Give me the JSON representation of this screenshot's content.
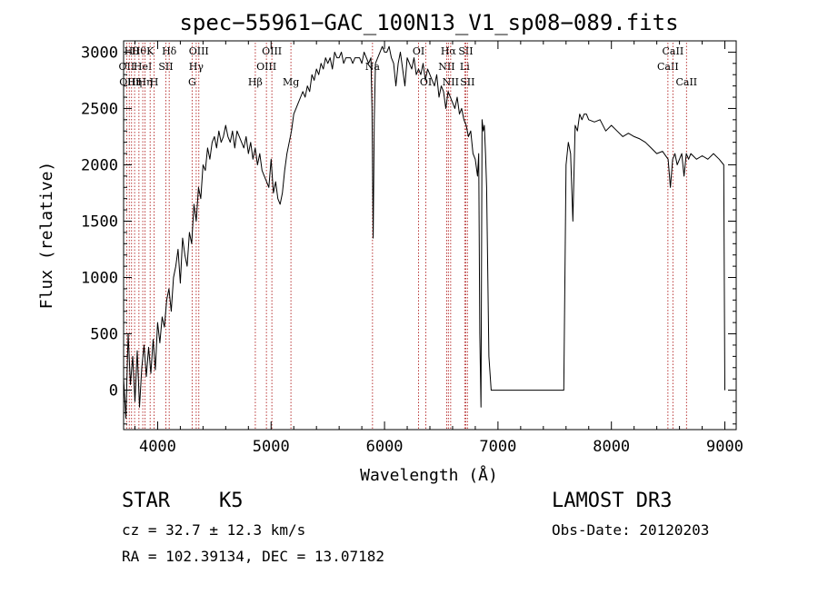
{
  "chart_data": {
    "type": "line",
    "title": "spec−55961−GAC_100N13_V1_sp08−089.fits",
    "xlabel": "Wavelength (Å)",
    "ylabel": "Flux (relative)",
    "xlim": [
      3700,
      9100
    ],
    "ylim": [
      -350,
      3100
    ],
    "xticks": [
      4000,
      5000,
      6000,
      7000,
      8000,
      9000
    ],
    "yticks": [
      0,
      500,
      1000,
      1500,
      2000,
      2500,
      3000
    ],
    "xtick_labels": [
      "4000",
      "5000",
      "6000",
      "7000",
      "8000",
      "9000"
    ],
    "ytick_labels": [
      "0",
      "500",
      "1000",
      "1500",
      "2000",
      "2500",
      "3000"
    ],
    "series": [
      {
        "name": "flux",
        "x": [
          3700,
          3720,
          3740,
          3760,
          3780,
          3800,
          3820,
          3840,
          3860,
          3880,
          3900,
          3920,
          3940,
          3960,
          3980,
          4000,
          4020,
          4040,
          4060,
          4080,
          4100,
          4120,
          4140,
          4160,
          4180,
          4200,
          4220,
          4240,
          4260,
          4280,
          4300,
          4320,
          4340,
          4360,
          4380,
          4400,
          4420,
          4440,
          4460,
          4480,
          4500,
          4520,
          4540,
          4560,
          4580,
          4600,
          4620,
          4640,
          4660,
          4680,
          4700,
          4720,
          4740,
          4760,
          4780,
          4800,
          4820,
          4840,
          4860,
          4880,
          4900,
          4920,
          4940,
          4960,
          4980,
          5000,
          5020,
          5040,
          5060,
          5080,
          5100,
          5120,
          5140,
          5160,
          5180,
          5200,
          5220,
          5240,
          5260,
          5280,
          5300,
          5320,
          5340,
          5360,
          5380,
          5400,
          5420,
          5440,
          5460,
          5480,
          5500,
          5520,
          5540,
          5560,
          5580,
          5600,
          5620,
          5640,
          5660,
          5680,
          5700,
          5720,
          5740,
          5760,
          5780,
          5800,
          5820,
          5840,
          5860,
          5880,
          5890,
          5900,
          5910,
          5920,
          5940,
          5960,
          5980,
          6000,
          6020,
          6040,
          6060,
          6080,
          6100,
          6120,
          6140,
          6160,
          6180,
          6200,
          6220,
          6240,
          6260,
          6280,
          6300,
          6320,
          6340,
          6360,
          6380,
          6400,
          6420,
          6440,
          6460,
          6480,
          6500,
          6520,
          6540,
          6560,
          6580,
          6600,
          6620,
          6640,
          6660,
          6680,
          6700,
          6720,
          6740,
          6760,
          6780,
          6800,
          6820,
          6830,
          6840,
          6850,
          6860,
          6870,
          6880,
          6890,
          6900,
          6920,
          6940,
          6960,
          7000,
          7100,
          7200,
          7300,
          7400,
          7500,
          7560,
          7580,
          7600,
          7620,
          7640,
          7660,
          7680,
          7700,
          7720,
          7740,
          7760,
          7780,
          7800,
          7850,
          7900,
          7950,
          8000,
          8050,
          8100,
          8150,
          8200,
          8250,
          8300,
          8350,
          8400,
          8450,
          8500,
          8520,
          8540,
          8560,
          8580,
          8600,
          8620,
          8640,
          8660,
          8680,
          8700,
          8750,
          8800,
          8850,
          8900,
          8950,
          8990,
          9000
        ],
        "y": [
          100,
          -250,
          500,
          50,
          300,
          -100,
          350,
          -150,
          200,
          400,
          120,
          380,
          150,
          450,
          180,
          600,
          420,
          650,
          560,
          800,
          900,
          700,
          1000,
          1100,
          1250,
          950,
          1350,
          1200,
          1100,
          1400,
          1300,
          1650,
          1500,
          1800,
          1700,
          2000,
          1950,
          2150,
          2050,
          2200,
          2250,
          2150,
          2300,
          2200,
          2250,
          2350,
          2250,
          2200,
          2300,
          2150,
          2300,
          2250,
          2200,
          2150,
          2250,
          2100,
          2200,
          2050,
          2150,
          2000,
          2100,
          1950,
          1900,
          1850,
          1800,
          2050,
          1750,
          1850,
          1700,
          1650,
          1750,
          1950,
          2100,
          2200,
          2300,
          2450,
          2500,
          2550,
          2600,
          2650,
          2600,
          2700,
          2650,
          2800,
          2750,
          2850,
          2800,
          2900,
          2850,
          2950,
          2900,
          2950,
          2850,
          3000,
          2950,
          2950,
          3000,
          2900,
          2950,
          2950,
          2950,
          2900,
          2950,
          2950,
          2950,
          2900,
          3000,
          2950,
          2900,
          2950,
          2500,
          1350,
          2400,
          2900,
          2950,
          3000,
          3050,
          3000,
          3000,
          3050,
          2950,
          2900,
          2700,
          2900,
          3000,
          2850,
          2700,
          2950,
          2900,
          2850,
          2950,
          2800,
          2850,
          2800,
          2900,
          2750,
          2850,
          2800,
          2750,
          2700,
          2800,
          2600,
          2700,
          2650,
          2500,
          2650,
          2600,
          2550,
          2500,
          2600,
          2450,
          2500,
          2400,
          2350,
          2250,
          2300,
          2100,
          2050,
          1900,
          2100,
          500,
          -150,
          2400,
          2300,
          2350,
          2100,
          1800,
          300,
          0,
          0,
          0,
          0,
          0,
          0,
          0,
          0,
          0,
          0,
          2000,
          2200,
          2100,
          1500,
          2350,
          2300,
          2450,
          2400,
          2450,
          2450,
          2400,
          2380,
          2400,
          2300,
          2350,
          2300,
          2250,
          2280,
          2250,
          2230,
          2200,
          2150,
          2100,
          2120,
          2050,
          1800,
          2050,
          2100,
          2000,
          2050,
          2100,
          1900,
          2100,
          2050,
          2100,
          2050,
          2080,
          2050,
          2100,
          2050,
          2000,
          0
        ]
      }
    ],
    "line_markers": [
      {
        "x": 3727,
        "label": "OII",
        "row": 1
      },
      {
        "x": 3750,
        "label": "OIII",
        "row": 2
      },
      {
        "x": 3770,
        "label": "Hθ",
        "row": 0
      },
      {
        "x": 3797,
        "label": "Hη",
        "row": 2
      },
      {
        "x": 3835,
        "label": "Hθ",
        "row": 0
      },
      {
        "x": 3869,
        "label": "HeI",
        "row": 1
      },
      {
        "x": 3889,
        "label": "Hη",
        "row": 2
      },
      {
        "x": 3934,
        "label": "K",
        "row": 0
      },
      {
        "x": 3969,
        "label": "H",
        "row": 2
      },
      {
        "x": 4072,
        "label": "SII",
        "row": 1
      },
      {
        "x": 4102,
        "label": "Hδ",
        "row": 0
      },
      {
        "x": 4304,
        "label": "G",
        "row": 2
      },
      {
        "x": 4340,
        "label": "Hγ",
        "row": 1
      },
      {
        "x": 4363,
        "label": "OIII",
        "row": 0
      },
      {
        "x": 4861,
        "label": "Hβ",
        "row": 2
      },
      {
        "x": 4959,
        "label": "OIII",
        "row": 1
      },
      {
        "x": 5007,
        "label": "OIII",
        "row": 0
      },
      {
        "x": 5175,
        "label": "Mg",
        "row": 2
      },
      {
        "x": 5894,
        "label": "Na",
        "row": 1
      },
      {
        "x": 6300,
        "label": "OI",
        "row": 0
      },
      {
        "x": 6364,
        "label": "OI",
        "row": 2
      },
      {
        "x": 6548,
        "label": "NII",
        "row": 1
      },
      {
        "x": 6563,
        "label": "Hα",
        "row": 0
      },
      {
        "x": 6583,
        "label": "NII",
        "row": 2
      },
      {
        "x": 6707,
        "label": "Li",
        "row": 1
      },
      {
        "x": 6716,
        "label": "SII",
        "row": 0
      },
      {
        "x": 6731,
        "label": "SII",
        "row": 2
      },
      {
        "x": 8498,
        "label": "CaII",
        "row": 1
      },
      {
        "x": 8542,
        "label": "CaII",
        "row": 0
      },
      {
        "x": 8662,
        "label": "CaII",
        "row": 2
      }
    ]
  },
  "info": {
    "object_type": "STAR",
    "subclass": "K5",
    "redshift_line": "cz = 32.7 ± 12.3 km/s",
    "coords_line": "RA = 102.39134, DEC =  13.07182",
    "survey": "LAMOST DR3",
    "obs_date_line": "Obs-Date: 20120203"
  }
}
